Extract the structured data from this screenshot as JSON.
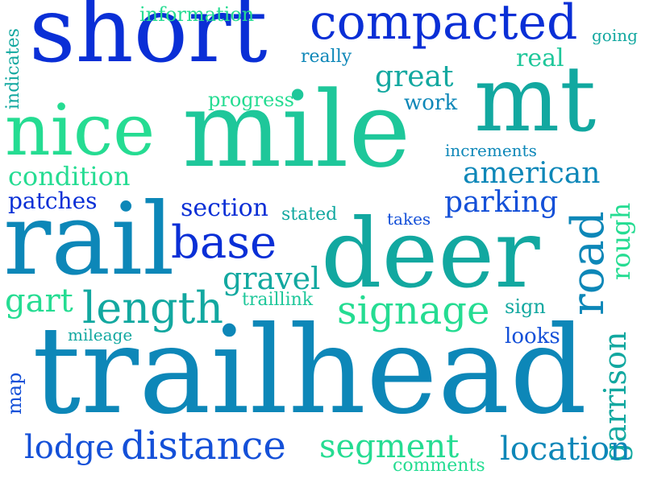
{
  "palette": {
    "deep_blue": "#0a2fd6",
    "blue": "#1450d8",
    "teal_blue": "#0d87b8",
    "teal": "#12a8a0",
    "green": "#1ec79a",
    "mint": "#25dc92"
  },
  "words": [
    {
      "id": "short",
      "text": "short"
    },
    {
      "id": "compacted",
      "text": "compacted"
    },
    {
      "id": "information",
      "text": "information"
    },
    {
      "id": "going",
      "text": "going"
    },
    {
      "id": "really",
      "text": "really"
    },
    {
      "id": "real",
      "text": "real"
    },
    {
      "id": "indicates",
      "text": "indicates"
    },
    {
      "id": "great",
      "text": "great"
    },
    {
      "id": "progress",
      "text": "progress"
    },
    {
      "id": "work",
      "text": "work"
    },
    {
      "id": "mt",
      "text": "mt"
    },
    {
      "id": "nice",
      "text": "nice"
    },
    {
      "id": "mile",
      "text": "mile"
    },
    {
      "id": "increments",
      "text": "increments"
    },
    {
      "id": "condition",
      "text": "condition"
    },
    {
      "id": "american",
      "text": "american"
    },
    {
      "id": "patches",
      "text": "patches"
    },
    {
      "id": "section",
      "text": "section"
    },
    {
      "id": "parking",
      "text": "parking"
    },
    {
      "id": "stated",
      "text": "stated"
    },
    {
      "id": "takes",
      "text": "takes"
    },
    {
      "id": "rail",
      "text": "rail"
    },
    {
      "id": "base",
      "text": "base"
    },
    {
      "id": "deer",
      "text": "deer"
    },
    {
      "id": "road",
      "text": "road"
    },
    {
      "id": "rough",
      "text": "rough"
    },
    {
      "id": "gravel",
      "text": "gravel"
    },
    {
      "id": "gart",
      "text": "gart"
    },
    {
      "id": "length",
      "text": "length"
    },
    {
      "id": "traillink",
      "text": "traillink"
    },
    {
      "id": "signage",
      "text": "signage"
    },
    {
      "id": "sign",
      "text": "sign"
    },
    {
      "id": "mileage",
      "text": "mileage"
    },
    {
      "id": "looks",
      "text": "looks"
    },
    {
      "id": "garrison",
      "text": "garrison"
    },
    {
      "id": "trailhead",
      "text": "trailhead"
    },
    {
      "id": "map",
      "text": "map"
    },
    {
      "id": "lodge",
      "text": "lodge"
    },
    {
      "id": "distance",
      "text": "distance"
    },
    {
      "id": "segment",
      "text": "segment"
    },
    {
      "id": "location",
      "text": "location"
    },
    {
      "id": "comments",
      "text": "comments"
    }
  ]
}
